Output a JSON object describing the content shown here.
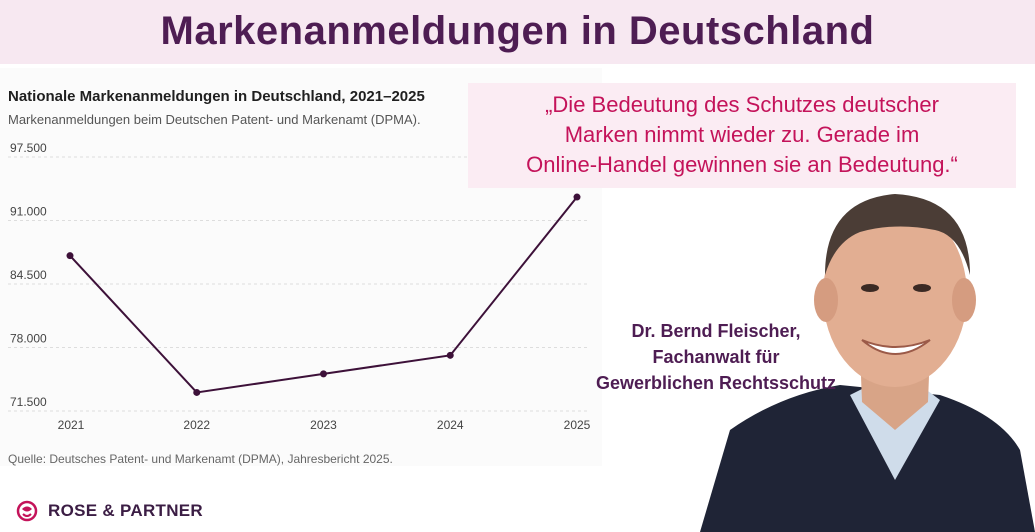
{
  "header": {
    "title": "Markenanmeldungen in Deutschland"
  },
  "chart_data": {
    "type": "line",
    "title": "Nationale Markenanmeldungen in Deutschland, 2021–2025",
    "subtitle": "Markenanmeldungen beim Deutschen Patent- und Markenamt (DPMA).",
    "source": "Quelle: Deutsches Patent- und Markenamt (DPMA), Jahresbericht 2025.",
    "categories": [
      "2021",
      "2022",
      "2023",
      "2024",
      "2025"
    ],
    "series": [
      {
        "values": [
          87400,
          73400,
          75300,
          77200,
          93400
        ]
      }
    ],
    "yticks": [
      97500,
      91000,
      84500,
      78000,
      71500
    ],
    "ytick_labels": [
      "97.500",
      "91.000",
      "84.500",
      "78.000",
      "71.500"
    ],
    "ylim": [
      71500,
      97500
    ],
    "grid": true,
    "line_color": "#3d1139"
  },
  "quote": {
    "lines": [
      "„Die Bedeutung des Schutzes deutscher",
      "Marken nimmt wieder zu. Gerade im",
      "Online-Handel gewinnen sie an Bedeutung.“"
    ]
  },
  "person": {
    "name_lines": [
      "Dr. Bernd Fleischer,",
      "Fachanwalt für",
      "Gewerblichen Rechtsschutz"
    ]
  },
  "logo": {
    "text": "ROSE & PARTNER",
    "color": "#c4135a"
  }
}
